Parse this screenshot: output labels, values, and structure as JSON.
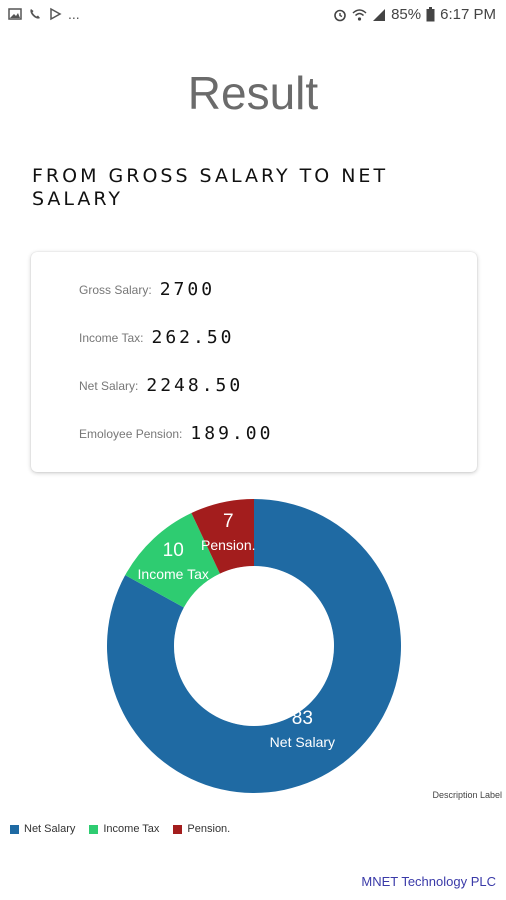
{
  "status_bar": {
    "overflow": "...",
    "battery": "85%",
    "time": "6:17 PM"
  },
  "title": "Result",
  "heading": "FROM GROSS SALARY TO NET SALARY",
  "summary": {
    "gross_label": "Gross Salary:",
    "gross_value": "2700",
    "tax_label": "Income Tax:",
    "tax_value": "262.50",
    "net_label": "Net Salary:",
    "net_value": "2248.50",
    "pension_label": "Emoloyee Pension:",
    "pension_value": "189.00"
  },
  "chart_data": {
    "type": "pie",
    "series": [
      {
        "name": "Net Salary",
        "value": 83,
        "color": "#1f6aa3"
      },
      {
        "name": "Income Tax",
        "value": 10,
        "color": "#2ecc71"
      },
      {
        "name": "Pension.",
        "value": 7,
        "color": "#a31d1d"
      }
    ],
    "description": "Description Label",
    "legend_placement": "bottom-left"
  },
  "footer": "MNET Technology PLC"
}
